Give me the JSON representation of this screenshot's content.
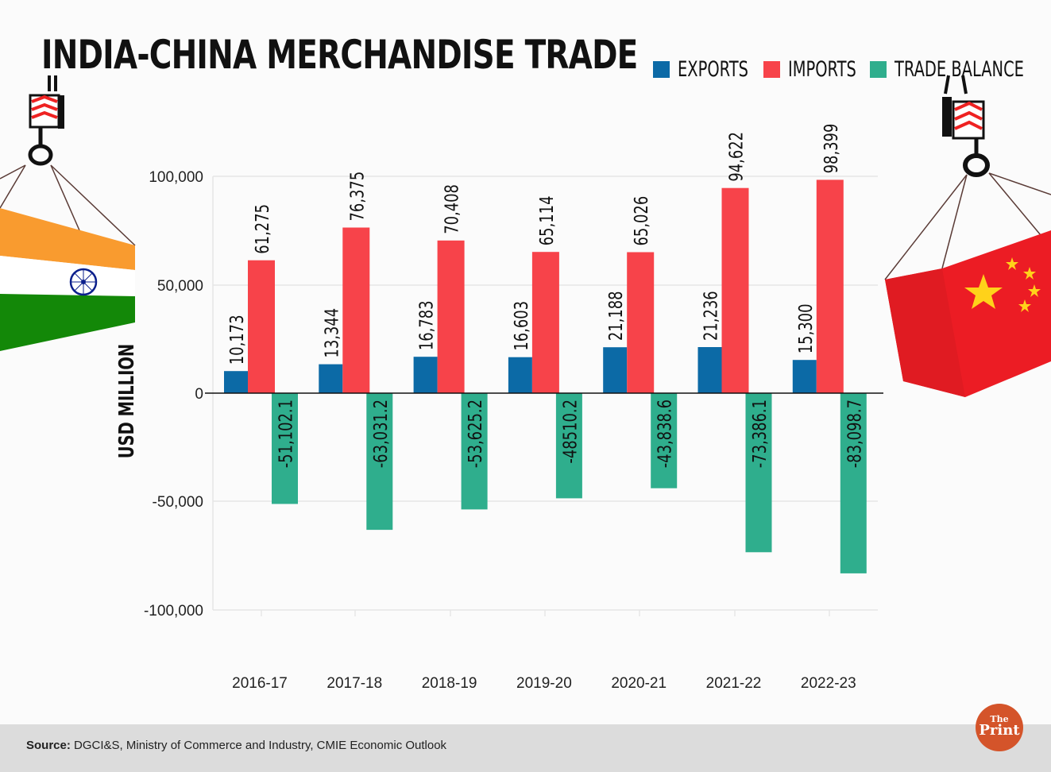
{
  "header": {
    "title": "INDIA-CHINA MERCHANDISE TRADE"
  },
  "legend": [
    {
      "label": "EXPORTS",
      "color": "#0c6aa6"
    },
    {
      "label": "IMPORTS",
      "color": "#f7434a"
    },
    {
      "label": "TRADE BALANCE",
      "color": "#2fae8d"
    }
  ],
  "axis": {
    "ylabel": "USD MILLION",
    "yticks": [
      "100,000",
      "50,000",
      "0",
      "-50,000",
      "-100,000"
    ]
  },
  "footer": {
    "source_label": "Source:",
    "source_text": " DGCI&S, Ministry of Commerce and Industry, CMIE Economic Outlook",
    "logo_top": "The",
    "logo_bottom": "Print"
  },
  "decorations": {
    "left_image": "india-flag-container-crane-icon",
    "right_image": "china-flag-container-crane-icon"
  },
  "chart_data": {
    "type": "bar",
    "title": "INDIA-CHINA MERCHANDISE TRADE",
    "xlabel": "",
    "ylabel": "USD MILLION",
    "ylim": [
      -100000,
      100000
    ],
    "yticks": [
      100000,
      50000,
      0,
      -50000,
      -100000
    ],
    "grid": true,
    "legend_position": "top-right",
    "categories": [
      "2016-17",
      "2017-18",
      "2018-19",
      "2019-20",
      "2020-21",
      "2021-22",
      "2022-23"
    ],
    "series": [
      {
        "name": "EXPORTS",
        "color": "#0c6aa6",
        "values": [
          10173,
          13344,
          16783,
          16603,
          21188,
          21236,
          15300
        ],
        "labels": [
          "10,173",
          "13,344",
          "16,783",
          "16,603",
          "21,188",
          "21,236",
          "15,300"
        ]
      },
      {
        "name": "IMPORTS",
        "color": "#f7434a",
        "values": [
          61275,
          76375,
          70408,
          65114,
          65026,
          94622,
          98399
        ],
        "labels": [
          "61,275",
          "76,375",
          "70,408",
          "65,114",
          "65,026",
          "94,622",
          "98,399"
        ]
      },
      {
        "name": "TRADE BALANCE",
        "color": "#2fae8d",
        "values": [
          -51102.1,
          -63031.2,
          -53625.2,
          -48510.2,
          -43838.6,
          -73386.1,
          -83098.7
        ],
        "labels": [
          "-51,102.1",
          "-63,031.2",
          "-53,625.2",
          "-48510.2",
          "-43,838.6",
          "-73,386.1",
          "-83,098.7"
        ]
      }
    ]
  }
}
